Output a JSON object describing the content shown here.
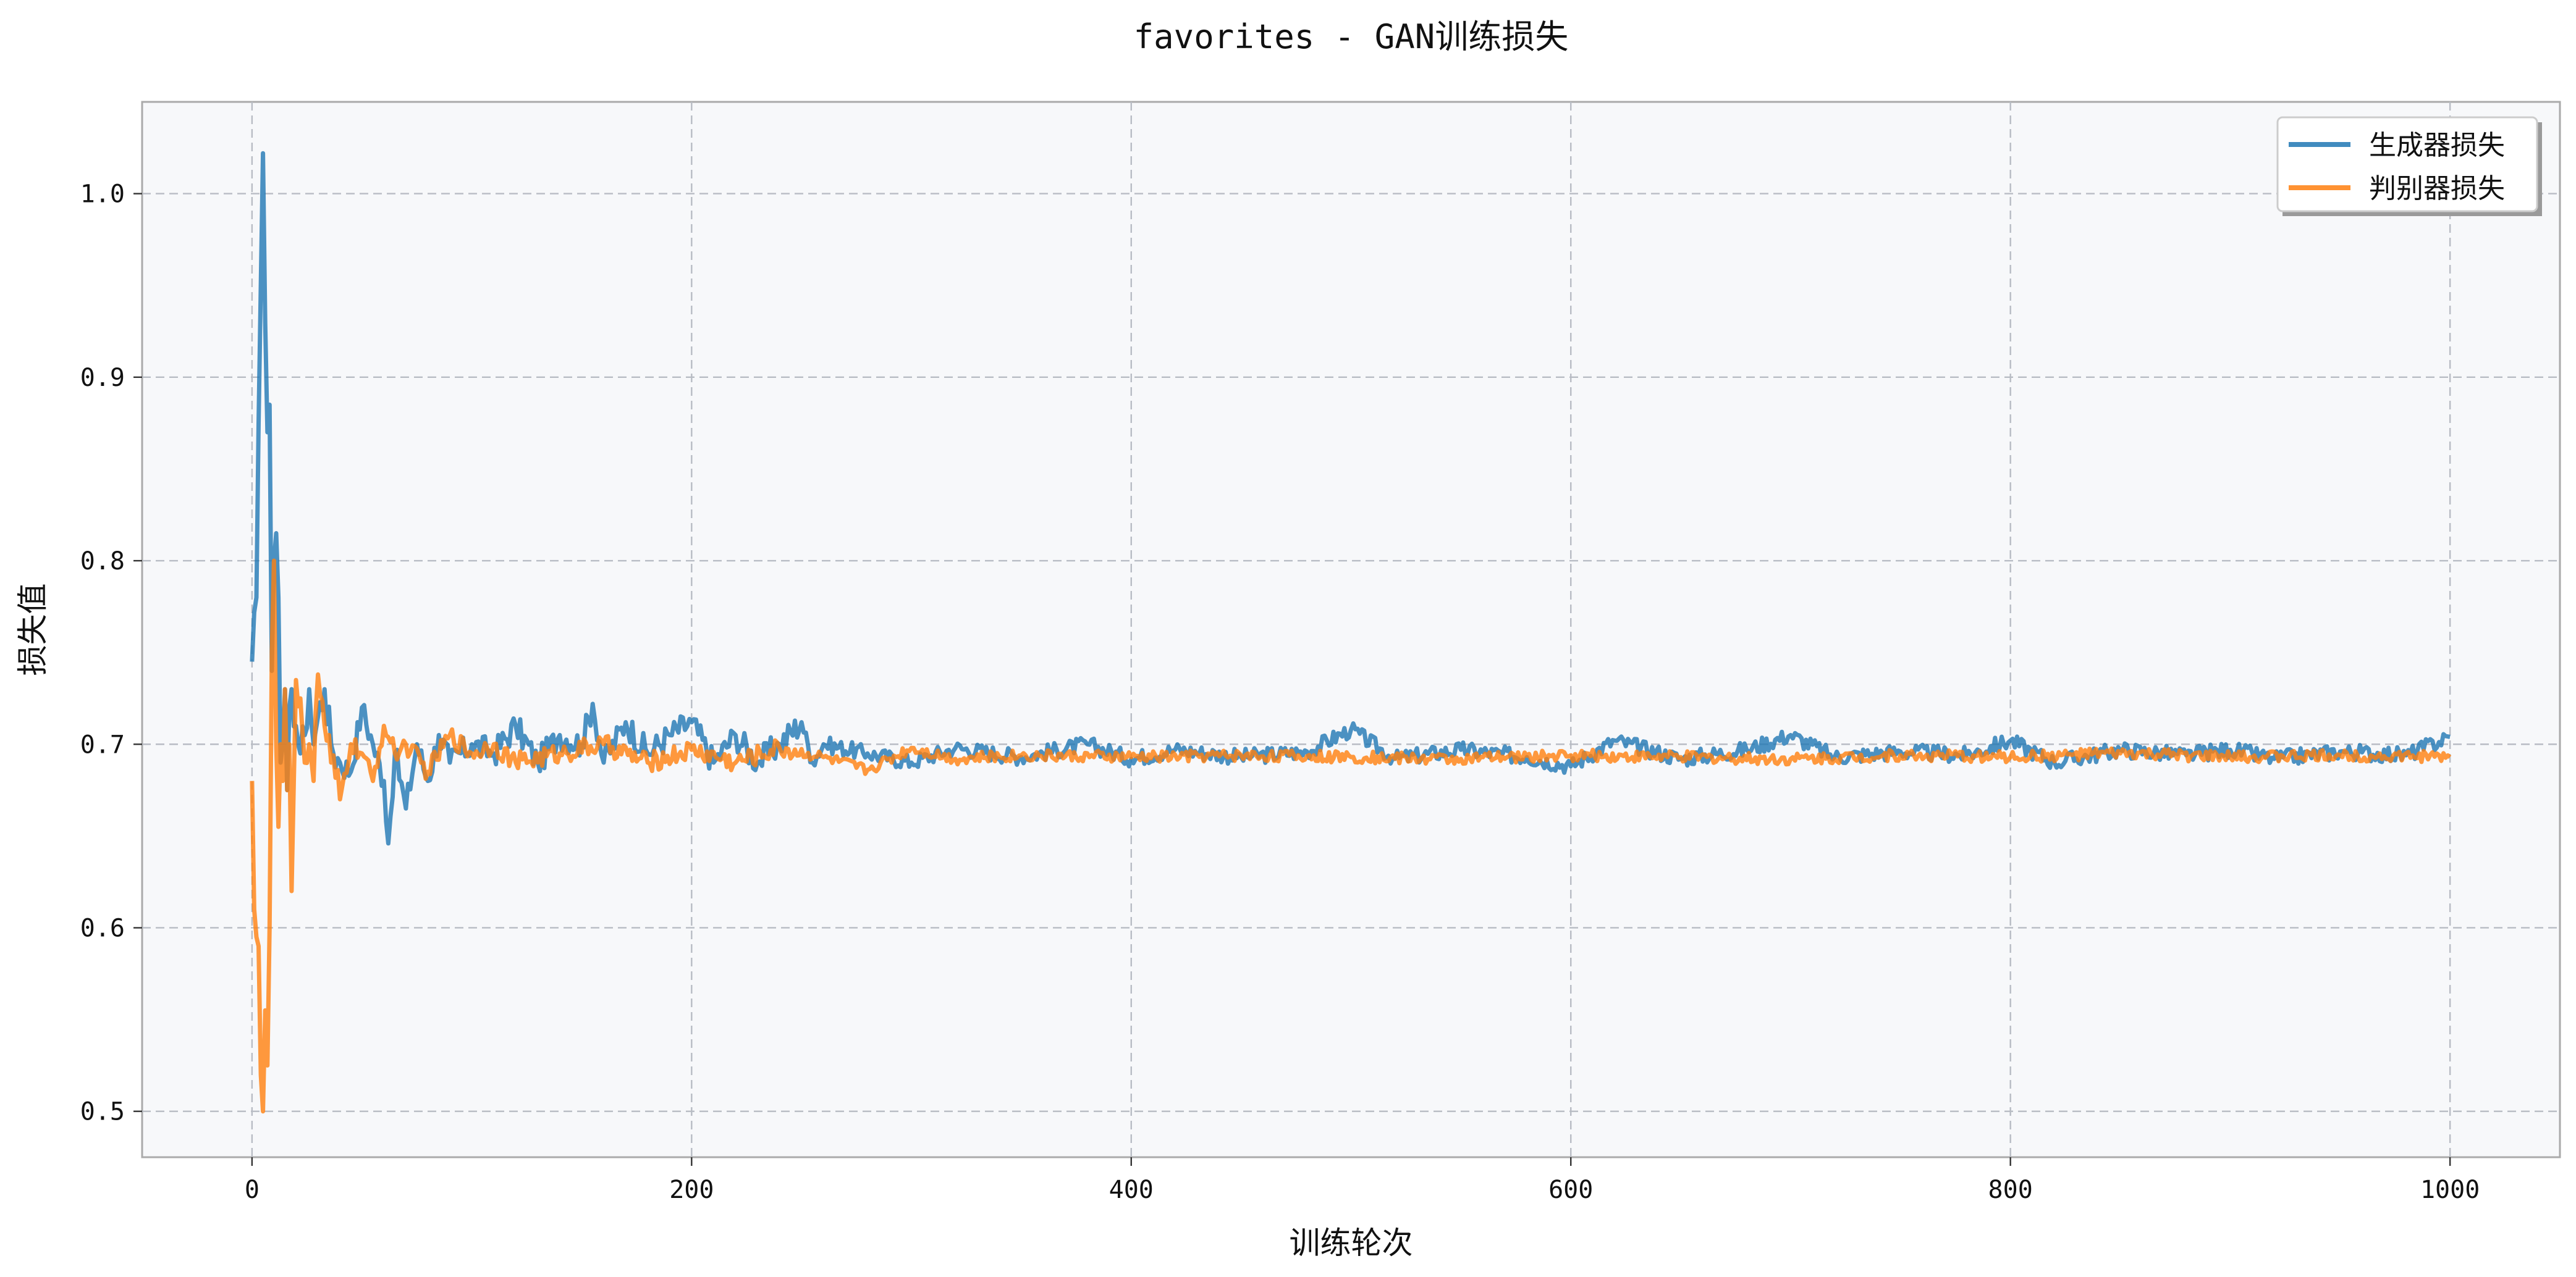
{
  "chart_data": {
    "type": "line",
    "title": "favorites - GAN训练损失",
    "xlabel": "训练轮次",
    "ylabel": "损失值",
    "xlim": [
      -50,
      1050
    ],
    "ylim": [
      0.475,
      1.05
    ],
    "xticks": [
      0,
      200,
      400,
      600,
      800,
      1000
    ],
    "yticks": [
      0.5,
      0.6,
      0.7,
      0.8,
      0.9,
      1.0
    ],
    "xtick_labels": [
      "0",
      "200",
      "400",
      "600",
      "800",
      "1000"
    ],
    "ytick_labels": [
      "0.5",
      "0.6",
      "0.7",
      "0.8",
      "0.9",
      "1.0"
    ],
    "grid": true,
    "legend_position": "top-right",
    "series": [
      {
        "name": "生成器损失",
        "color": "#1f77b4",
        "x": [
          0,
          2,
          4,
          5,
          6,
          7,
          8,
          9,
          10,
          11,
          12,
          13,
          14,
          15,
          16,
          17,
          18,
          20,
          22,
          24,
          26,
          28,
          30,
          33,
          36,
          40,
          45,
          50,
          55,
          60,
          62,
          65,
          70,
          75,
          80,
          85,
          90,
          100,
          110,
          120,
          130,
          140,
          150,
          155,
          160,
          170,
          180,
          190,
          200,
          210,
          220,
          230,
          240,
          250,
          255,
          260,
          280,
          300,
          320,
          350,
          380,
          400,
          420,
          450,
          480,
          500,
          520,
          550,
          580,
          600,
          620,
          650,
          680,
          700,
          720,
          750,
          780,
          800,
          820,
          850,
          880,
          900,
          920,
          950,
          980,
          1000
        ],
        "values": [
          0.745,
          0.78,
          0.95,
          1.022,
          0.93,
          0.87,
          0.885,
          0.74,
          0.8,
          0.815,
          0.78,
          0.69,
          0.7,
          0.73,
          0.675,
          0.72,
          0.73,
          0.71,
          0.695,
          0.705,
          0.73,
          0.7,
          0.715,
          0.73,
          0.7,
          0.69,
          0.685,
          0.72,
          0.7,
          0.68,
          0.646,
          0.695,
          0.665,
          0.7,
          0.68,
          0.705,
          0.69,
          0.7,
          0.695,
          0.71,
          0.69,
          0.705,
          0.7,
          0.722,
          0.69,
          0.712,
          0.695,
          0.705,
          0.712,
          0.69,
          0.705,
          0.69,
          0.7,
          0.712,
          0.69,
          0.7,
          0.695,
          0.69,
          0.698,
          0.693,
          0.7,
          0.692,
          0.697,
          0.693,
          0.696,
          0.708,
          0.692,
          0.697,
          0.693,
          0.688,
          0.702,
          0.692,
          0.697,
          0.705,
          0.693,
          0.696,
          0.694,
          0.702,
          0.69,
          0.697,
          0.694,
          0.697,
          0.692,
          0.696,
          0.694,
          0.704
        ]
      },
      {
        "name": "判别器损失",
        "color": "#ff7f0e",
        "x": [
          0,
          1,
          2,
          3,
          4,
          5,
          6,
          7,
          8,
          9,
          10,
          11,
          12,
          13,
          14,
          15,
          16,
          17,
          18,
          19,
          20,
          22,
          24,
          26,
          28,
          30,
          33,
          36,
          40,
          45,
          50,
          55,
          60,
          65,
          70,
          80,
          90,
          100,
          110,
          120,
          140,
          160,
          180,
          200,
          220,
          240,
          260,
          280,
          300,
          320,
          350,
          400,
          450,
          500,
          550,
          600,
          650,
          700,
          750,
          800,
          850,
          900,
          950,
          1000
        ],
        "values": [
          0.68,
          0.61,
          0.595,
          0.59,
          0.52,
          0.5,
          0.555,
          0.525,
          0.6,
          0.75,
          0.8,
          0.7,
          0.655,
          0.7,
          0.68,
          0.73,
          0.675,
          0.7,
          0.62,
          0.68,
          0.735,
          0.725,
          0.69,
          0.7,
          0.68,
          0.738,
          0.71,
          0.69,
          0.67,
          0.7,
          0.695,
          0.68,
          0.71,
          0.695,
          0.7,
          0.685,
          0.705,
          0.695,
          0.7,
          0.69,
          0.695,
          0.7,
          0.69,
          0.697,
          0.69,
          0.698,
          0.693,
          0.686,
          0.698,
          0.692,
          0.694,
          0.693,
          0.694,
          0.693,
          0.692,
          0.694,
          0.693,
          0.692,
          0.694,
          0.693,
          0.695,
          0.693,
          0.694,
          0.693
        ]
      }
    ]
  }
}
